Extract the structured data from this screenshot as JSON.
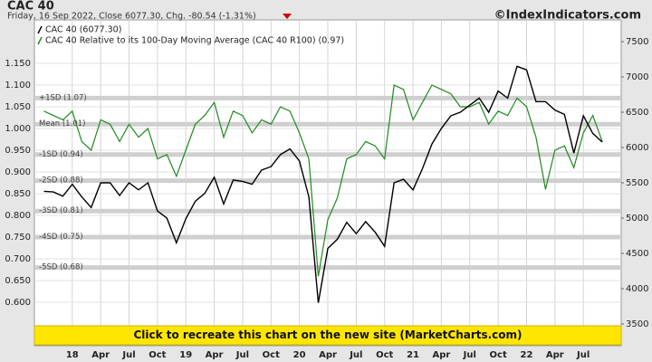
{
  "chart_data": {
    "type": "line",
    "title": "CAC 40",
    "subtitle": "Friday, 16 Sep 2022, Close 6077.30, Chg. -80.54 (-1.31%)",
    "source": "©IndexIndicators.com",
    "banner": "Click to recreate this chart on the new site (MarketCharts.com)",
    "x": [
      "2017-10",
      "2017-11",
      "2017-12",
      "2018-01",
      "2018-02",
      "2018-03",
      "2018-04",
      "2018-05",
      "2018-06",
      "2018-07",
      "2018-08",
      "2018-09",
      "2018-10",
      "2018-11",
      "2018-12",
      "2019-01",
      "2019-02",
      "2019-03",
      "2019-04",
      "2019-05",
      "2019-06",
      "2019-07",
      "2019-08",
      "2019-09",
      "2019-10",
      "2019-11",
      "2019-12",
      "2020-01",
      "2020-02",
      "2020-03",
      "2020-04",
      "2020-05",
      "2020-06",
      "2020-07",
      "2020-08",
      "2020-09",
      "2020-10",
      "2020-11",
      "2020-12",
      "2021-01",
      "2021-02",
      "2021-03",
      "2021-04",
      "2021-05",
      "2021-06",
      "2021-07",
      "2021-08",
      "2021-09",
      "2021-10",
      "2021-11",
      "2021-12",
      "2022-01",
      "2022-02",
      "2022-03",
      "2022-04",
      "2022-05",
      "2022-06",
      "2022-07",
      "2022-08",
      "2022-09"
    ],
    "series": [
      {
        "name": "CAC 40 (6077.30)",
        "color": "#000000",
        "axis": "y2",
        "values": [
          5380,
          5370,
          5310,
          5480,
          5300,
          5150,
          5500,
          5500,
          5320,
          5500,
          5400,
          5500,
          5100,
          5000,
          4650,
          4990,
          5240,
          5350,
          5580,
          5200,
          5540,
          5520,
          5480,
          5680,
          5730,
          5900,
          5980,
          5810,
          5300,
          3800,
          4570,
          4700,
          4940,
          4780,
          4950,
          4800,
          4600,
          5500,
          5550,
          5400,
          5700,
          6050,
          6270,
          6450,
          6500,
          6600,
          6700,
          6500,
          6800,
          6700,
          7150,
          7100,
          6650,
          6650,
          6530,
          6470,
          5920,
          6450,
          6200,
          6077.3
        ]
      },
      {
        "name": "CAC 40 Relative to its 100-Day Moving Average (CAC 40 R100) (0.97)",
        "color": "#1e8a1e",
        "values": [
          1.04,
          1.03,
          1.02,
          1.04,
          0.97,
          0.95,
          1.02,
          1.01,
          0.97,
          1.01,
          0.98,
          1.0,
          0.93,
          0.94,
          0.89,
          0.95,
          1.01,
          1.03,
          1.06,
          0.98,
          1.04,
          1.03,
          0.99,
          1.02,
          1.01,
          1.05,
          1.04,
          0.99,
          0.93,
          0.66,
          0.79,
          0.84,
          0.93,
          0.94,
          0.97,
          0.96,
          0.93,
          1.1,
          1.09,
          1.02,
          1.06,
          1.1,
          1.09,
          1.08,
          1.05,
          1.05,
          1.06,
          1.01,
          1.04,
          1.03,
          1.07,
          1.05,
          0.98,
          0.86,
          0.95,
          0.96,
          0.91,
          0.99,
          1.03,
          0.97
        ]
      }
    ],
    "bands": [
      {
        "label": "+1SD (1.07)",
        "value": 1.07
      },
      {
        "label": "Mean (1.01)",
        "value": 1.01
      },
      {
        "label": "-1SD (0.94)",
        "value": 0.94
      },
      {
        "label": "-2SD (0.88)",
        "value": 0.88
      },
      {
        "label": "-3SD (0.81)",
        "value": 0.81
      },
      {
        "label": "-4SD (0.75)",
        "value": 0.75
      },
      {
        "label": "-5SD (0.68)",
        "value": 0.68
      }
    ],
    "xlim": [
      "2017-09",
      "2022-11"
    ],
    "xticks": [
      {
        "value": "2018-01",
        "label": "18"
      },
      {
        "value": "2018-04",
        "label": "Apr"
      },
      {
        "value": "2018-07",
        "label": "Jul"
      },
      {
        "value": "2018-10",
        "label": "Oct"
      },
      {
        "value": "2019-01",
        "label": "19"
      },
      {
        "value": "2019-04",
        "label": "Apr"
      },
      {
        "value": "2019-07",
        "label": "Jul"
      },
      {
        "value": "2019-10",
        "label": "Oct"
      },
      {
        "value": "2020-01",
        "label": "20"
      },
      {
        "value": "2020-04",
        "label": "Apr"
      },
      {
        "value": "2020-07",
        "label": "Jul"
      },
      {
        "value": "2020-10",
        "label": "Oct"
      },
      {
        "value": "2021-01",
        "label": "21"
      },
      {
        "value": "2021-04",
        "label": "Apr"
      },
      {
        "value": "2021-07",
        "label": "Jul"
      },
      {
        "value": "2021-10",
        "label": "Oct"
      },
      {
        "value": "2022-01",
        "label": "22"
      },
      {
        "value": "2022-04",
        "label": "Apr"
      },
      {
        "value": "2022-07",
        "label": "Jul"
      }
    ],
    "ylim": [
      0.5,
      1.25
    ],
    "yticks": [
      {
        "value": 0.6,
        "label": "0.600"
      },
      {
        "value": 0.65,
        "label": "0.650"
      },
      {
        "value": 0.7,
        "label": "0.700"
      },
      {
        "value": 0.75,
        "label": "0.750"
      },
      {
        "value": 0.8,
        "label": "0.800"
      },
      {
        "value": 0.85,
        "label": "0.850"
      },
      {
        "value": 0.9,
        "label": "0.900"
      },
      {
        "value": 0.95,
        "label": "0.950"
      },
      {
        "value": 1.0,
        "label": "1.000"
      },
      {
        "value": 1.05,
        "label": "1.050"
      },
      {
        "value": 1.1,
        "label": "1.100"
      },
      {
        "value": 1.15,
        "label": "1.150"
      }
    ],
    "y2lim": [
      3192,
      7808
    ],
    "y2ticks": [
      3500,
      4000,
      4500,
      5000,
      5500,
      6000,
      6500,
      7000,
      7500
    ],
    "grid": true
  }
}
